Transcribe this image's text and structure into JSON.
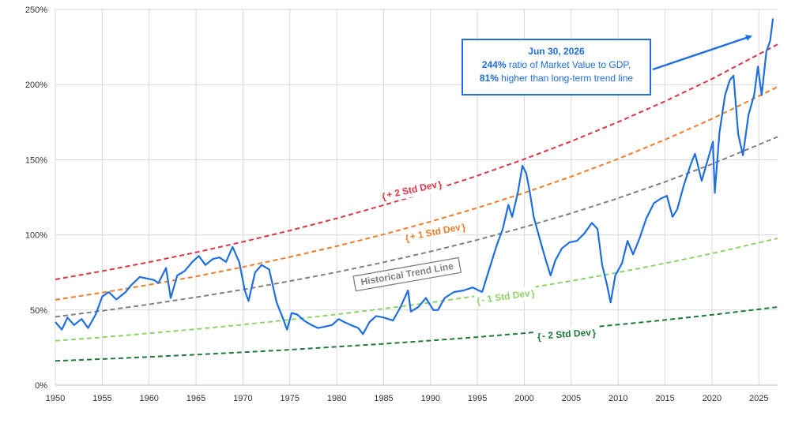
{
  "chart_data": {
    "type": "line",
    "title": "",
    "xlabel": "",
    "ylabel": "",
    "xlim": [
      1950,
      2027
    ],
    "ylim": [
      0,
      250
    ],
    "x_ticks": [
      1950,
      1955,
      1960,
      1965,
      1970,
      1975,
      1980,
      1985,
      1990,
      1995,
      2000,
      2005,
      2010,
      2015,
      2020,
      2025
    ],
    "y_ticks": [
      0,
      50,
      100,
      150,
      200,
      250
    ],
    "y_tick_labels": [
      "0%",
      "50%",
      "100%",
      "150%",
      "200%",
      "250%"
    ],
    "grid": true,
    "series": [
      {
        "name": "",
        "color": "#1f6fe0",
        "style": "solid",
        "x": [
          1950,
          1950.7,
          1951.3,
          1952,
          1952.8,
          1953.5,
          1954.3,
          1955,
          1955.7,
          1956.5,
          1957.5,
          1958,
          1959,
          1960.5,
          1961,
          1961.8,
          1962.3,
          1963,
          1963.8,
          1964.6,
          1965.3,
          1966,
          1966.8,
          1967.5,
          1968.2,
          1968.9,
          1969.6,
          1970.2,
          1970.6,
          1971.3,
          1972,
          1972.8,
          1973.6,
          1974.3,
          1974.7,
          1975.2,
          1975.8,
          1976.5,
          1977.3,
          1978,
          1978.8,
          1979.5,
          1980.2,
          1980.8,
          1981.5,
          1982.3,
          1982.8,
          1983.5,
          1984.2,
          1985,
          1986,
          1986.8,
          1987.6,
          1987.9,
          1988.7,
          1989.5,
          1990.3,
          1990.8,
          1991.5,
          1992.5,
          1993.5,
          1994.5,
          1995.5,
          1996.3,
          1997,
          1997.7,
          1998.3,
          1998.7,
          1999.3,
          1999.8,
          2000.2,
          2000.6,
          2001,
          2001.7,
          2002.3,
          2002.8,
          2003.3,
          2004,
          2004.8,
          2005.6,
          2006.4,
          2007.2,
          2007.8,
          2008.3,
          2008.8,
          2009.2,
          2009.7,
          2010.4,
          2011,
          2011.6,
          2012.3,
          2013,
          2013.8,
          2014.5,
          2015.2,
          2015.8,
          2016.3,
          2017,
          2017.8,
          2018.2,
          2018.9,
          2019.6,
          2020.1,
          2020.3,
          2020.8,
          2021.4,
          2021.9,
          2022.3,
          2022.8,
          2023.3,
          2023.9,
          2024.5,
          2024.9,
          2025.3,
          2025.8,
          2026.2,
          2026.5
        ],
        "values": [
          42,
          37,
          45,
          40,
          44,
          38,
          47,
          59,
          62,
          57,
          62,
          66,
          72,
          70,
          68,
          78,
          58,
          73,
          76,
          82,
          86,
          80,
          84,
          85,
          82,
          92,
          82,
          63,
          56,
          75,
          80,
          77,
          55,
          44,
          37,
          48,
          47,
          43,
          40,
          38,
          39,
          40,
          44,
          42,
          40,
          38,
          34,
          42,
          46,
          45,
          43,
          52,
          63,
          49,
          52,
          58,
          50,
          50,
          58,
          62,
          63,
          65,
          62,
          78,
          92,
          104,
          120,
          112,
          128,
          146,
          141,
          128,
          112,
          96,
          83,
          73,
          83,
          91,
          95,
          96,
          101,
          108,
          104,
          80,
          67,
          55,
          73,
          81,
          96,
          87,
          98,
          111,
          121,
          124,
          126,
          112,
          117,
          133,
          148,
          154,
          136,
          151,
          162,
          128,
          168,
          193,
          203,
          206,
          167,
          153,
          180,
          193,
          212,
          193,
          222,
          229,
          244
        ]
      },
      {
        "name": "Historical Trend Line",
        "color": "#808080",
        "style": "dashed",
        "x": [
          1950,
          1955,
          1960,
          1965,
          1970,
          1975,
          1980,
          1985,
          1990,
          1995,
          2000,
          2005,
          2010,
          2015,
          2020,
          2027
        ],
        "values": [
          45.5,
          49.5,
          53.8,
          58.5,
          63.6,
          69.2,
          75.2,
          81.8,
          88.9,
          96.7,
          105.2,
          114.4,
          124.4,
          135.3,
          147.1,
          165.3
        ]
      },
      {
        "name": "+ 1 Std Dev",
        "color": "#f07d2a",
        "style": "dashed",
        "x": [
          1950,
          1955,
          1960,
          1965,
          1970,
          1975,
          1980,
          1985,
          1990,
          1995,
          2000,
          2005,
          2010,
          2015,
          2020,
          2027
        ],
        "values": [
          56.8,
          61.6,
          66.8,
          72.4,
          78.6,
          85.3,
          92.5,
          100.3,
          108.8,
          118,
          128,
          138.8,
          150.6,
          163.4,
          177.2,
          198.5
        ]
      },
      {
        "name": "+ 2 Std Dev",
        "color": "#dc3545",
        "style": "dashed",
        "x": [
          1950,
          1955,
          1960,
          1965,
          1970,
          1975,
          1980,
          1985,
          1990,
          1995,
          2000,
          2005,
          2010,
          2015,
          2020,
          2027
        ],
        "values": [
          70.4,
          75.9,
          81.9,
          88.4,
          95.4,
          102.9,
          111,
          119.8,
          129.2,
          139.4,
          150.4,
          162.3,
          175.1,
          188.9,
          203.8,
          226.8
        ]
      },
      {
        "name": "- 1 Std Dev",
        "color": "#8fd46a",
        "style": "dashed",
        "x": [
          1950,
          1955,
          1960,
          1965,
          1970,
          1975,
          1980,
          1985,
          1990,
          1995,
          2000,
          2005,
          2010,
          2015,
          2020,
          2027
        ],
        "values": [
          29.5,
          31.9,
          34.5,
          37.3,
          40.3,
          43.6,
          47.1,
          50.9,
          55,
          59.4,
          64.2,
          69.4,
          75,
          81.1,
          87.6,
          97.7
        ]
      },
      {
        "name": "- 2 Std Dev",
        "color": "#1e7a3a",
        "style": "dashed",
        "x": [
          1950,
          1955,
          1960,
          1965,
          1970,
          1975,
          1980,
          1985,
          1990,
          1995,
          2000,
          2005,
          2010,
          2015,
          2020,
          2027
        ],
        "values": [
          16.1,
          17.4,
          18.8,
          20.3,
          21.9,
          23.6,
          25.5,
          27.5,
          29.7,
          32,
          34.6,
          37.3,
          40.3,
          43.4,
          46.8,
          52
        ]
      }
    ],
    "band_labels": [
      {
        "text": "+ 2 Std Dev",
        "color": "#dc3545"
      },
      {
        "text": "+ 1 Std Dev",
        "color": "#f07d2a"
      },
      {
        "text": "Historical Trend Line",
        "color": "#808080"
      },
      {
        "text": "- 1 Std Dev",
        "color": "#8fd46a"
      },
      {
        "text": "- 2 Std Dev",
        "color": "#1e7a3a"
      }
    ],
    "annotation": {
      "title": "Jun 30, 2026",
      "line1_bold": "244%",
      "line1_rest": " ratio of Market Value to GDP,",
      "line2_bold": "81%",
      "line2_rest": " higher than long-term trend line",
      "color": "#1f6fe0"
    }
  }
}
